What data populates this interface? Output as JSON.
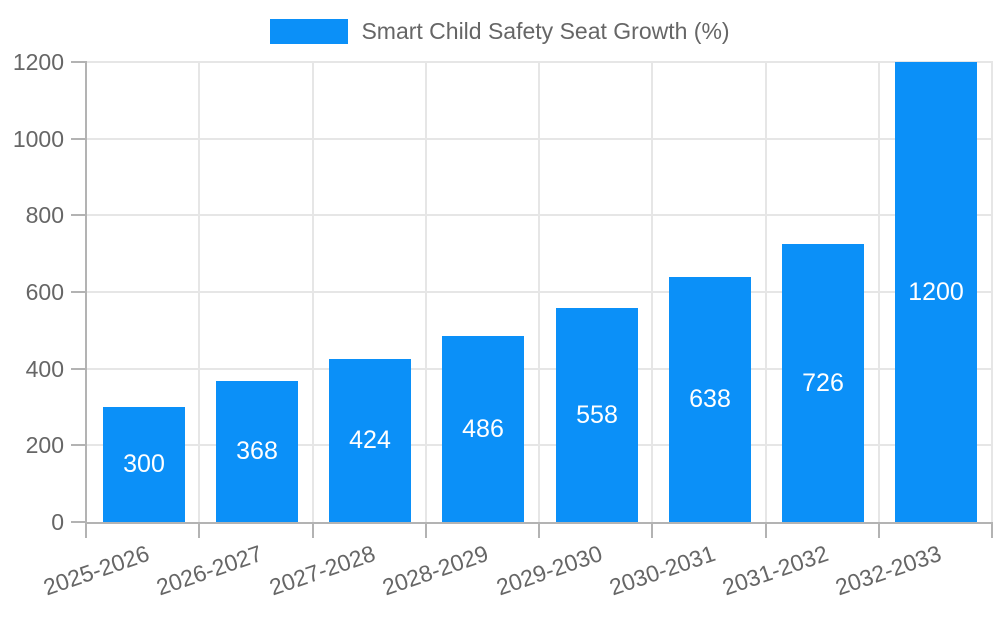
{
  "chart_data": {
    "type": "bar",
    "title": "",
    "legend_label": "Smart Child Safety Seat Growth (%)",
    "legend_position": "top-center",
    "categories": [
      "2025-2026",
      "2026-2027",
      "2027-2028",
      "2028-2029",
      "2029-2030",
      "2030-2031",
      "2031-2032",
      "2032-2033"
    ],
    "values": [
      300,
      368,
      424,
      486,
      558,
      638,
      726,
      1200
    ],
    "xlabel": "",
    "ylabel": "",
    "ylim": [
      0,
      1200
    ],
    "yticks": [
      0,
      200,
      400,
      600,
      800,
      1000,
      1200
    ],
    "grid": "both",
    "bar_labels_shown": true,
    "x_label_rotation_deg": -19
  },
  "colors": {
    "bar": "#0b90f8",
    "bar_label": "#ffffff",
    "axis_line": "#b3b3b3",
    "grid_line": "#e6e6e6",
    "tick_text": "#666666",
    "legend_text": "#666666",
    "background": "#ffffff"
  }
}
